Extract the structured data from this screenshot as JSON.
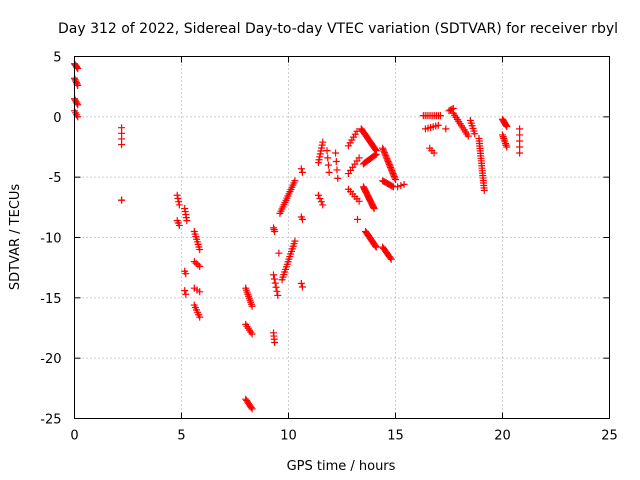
{
  "chart_data": {
    "type": "scatter",
    "title": "Day 312 of 2022, Sidereal Day-to-day VTEC variation (SDTVAR) for receiver rbyl",
    "xlabel": "GPS time / hours",
    "ylabel": "SDTVAR / TECUs",
    "xlim": [
      0,
      25
    ],
    "ylim": [
      -25,
      5
    ],
    "xticks": [
      0,
      5,
      10,
      15,
      20,
      25
    ],
    "yticks": [
      5,
      0,
      -5,
      -10,
      -15,
      -20,
      -25
    ],
    "xtick_labels": [
      "0",
      "5",
      "10",
      "15",
      "20",
      "25"
    ],
    "ytick_labels": [
      "5",
      "0",
      "-5",
      "-10",
      "-15",
      "-20",
      "-25"
    ],
    "grid": true,
    "marker": "+",
    "color": "#ff0000",
    "series": [
      {
        "name": "SDTVAR",
        "segments": [
          {
            "x0": 0.0,
            "x1": 0.15,
            "y0": 4.4,
            "y1": 4.0,
            "n": 6
          },
          {
            "x0": 0.0,
            "x1": 0.15,
            "y0": 3.2,
            "y1": 2.6,
            "n": 6
          },
          {
            "x0": 0.0,
            "x1": 0.15,
            "y0": 1.5,
            "y1": 1.0,
            "n": 5
          },
          {
            "x0": 0.0,
            "x1": 0.15,
            "y0": 0.5,
            "y1": 0.0,
            "n": 4
          },
          {
            "x0": 2.2,
            "x1": 2.2,
            "y0": -0.9,
            "y1": -2.3,
            "n": 4
          },
          {
            "x0": 2.2,
            "x1": 2.2,
            "y0": -6.9,
            "y1": -6.9,
            "n": 2
          },
          {
            "x0": 4.8,
            "x1": 4.9,
            "y0": -6.5,
            "y1": -7.3,
            "n": 4
          },
          {
            "x0": 4.8,
            "x1": 4.9,
            "y0": -8.6,
            "y1": -9.0,
            "n": 3
          },
          {
            "x0": 5.15,
            "x1": 5.25,
            "y0": -7.6,
            "y1": -8.6,
            "n": 5
          },
          {
            "x0": 5.15,
            "x1": 5.2,
            "y0": -12.8,
            "y1": -13.0,
            "n": 2
          },
          {
            "x0": 5.15,
            "x1": 5.2,
            "y0": -14.4,
            "y1": -14.7,
            "n": 2
          },
          {
            "x0": 5.6,
            "x1": 5.85,
            "y0": -9.5,
            "y1": -11.0,
            "n": 8
          },
          {
            "x0": 5.6,
            "x1": 5.85,
            "y0": -12.0,
            "y1": -12.4,
            "n": 4
          },
          {
            "x0": 5.6,
            "x1": 5.85,
            "y0": -14.2,
            "y1": -14.5,
            "n": 3
          },
          {
            "x0": 5.6,
            "x1": 5.85,
            "y0": -15.6,
            "y1": -16.6,
            "n": 6
          },
          {
            "x0": 8.0,
            "x1": 8.3,
            "y0": -14.2,
            "y1": -15.7,
            "n": 10
          },
          {
            "x0": 8.0,
            "x1": 8.3,
            "y0": -17.2,
            "y1": -18.0,
            "n": 6
          },
          {
            "x0": 8.0,
            "x1": 8.3,
            "y0": -23.4,
            "y1": -24.2,
            "n": 8
          },
          {
            "x0": 9.3,
            "x1": 9.35,
            "y0": -9.2,
            "y1": -9.5,
            "n": 3
          },
          {
            "x0": 9.3,
            "x1": 9.5,
            "y0": -13.1,
            "y1": -14.8,
            "n": 6
          },
          {
            "x0": 9.3,
            "x1": 9.35,
            "y0": -17.9,
            "y1": -18.7,
            "n": 4
          },
          {
            "x0": 9.6,
            "x1": 10.3,
            "y0": -8.0,
            "y1": -5.3,
            "n": 16
          },
          {
            "x0": 9.5,
            "x1": 9.6,
            "y0": -11.3,
            "y1": -11.3,
            "n": 1
          },
          {
            "x0": 9.7,
            "x1": 10.3,
            "y0": -13.5,
            "y1": -10.3,
            "n": 16
          },
          {
            "x0": 10.6,
            "x1": 10.65,
            "y0": -4.3,
            "y1": -4.6,
            "n": 2
          },
          {
            "x0": 10.6,
            "x1": 10.65,
            "y0": -8.3,
            "y1": -8.5,
            "n": 2
          },
          {
            "x0": 10.6,
            "x1": 10.65,
            "y0": -13.8,
            "y1": -14.1,
            "n": 2
          },
          {
            "x0": 11.4,
            "x1": 11.6,
            "y0": -3.8,
            "y1": -2.1,
            "n": 8
          },
          {
            "x0": 11.4,
            "x1": 11.6,
            "y0": -6.5,
            "y1": -7.3,
            "n": 4
          },
          {
            "x0": 11.8,
            "x1": 11.9,
            "y0": -2.8,
            "y1": -4.6,
            "n": 4
          },
          {
            "x0": 12.2,
            "x1": 12.3,
            "y0": -3.0,
            "y1": -5.1,
            "n": 4
          },
          {
            "x0": 12.8,
            "x1": 13.2,
            "y0": -2.4,
            "y1": -1.2,
            "n": 6
          },
          {
            "x0": 12.8,
            "x1": 13.3,
            "y0": -4.7,
            "y1": -3.4,
            "n": 6
          },
          {
            "x0": 12.8,
            "x1": 13.3,
            "y0": -6.0,
            "y1": -7.0,
            "n": 6
          },
          {
            "x0": 13.2,
            "x1": 13.25,
            "y0": -8.5,
            "y1": -8.5,
            "n": 1
          },
          {
            "x0": 13.4,
            "x1": 14.1,
            "y0": -1.0,
            "y1": -2.8,
            "n": 20
          },
          {
            "x0": 13.5,
            "x1": 14.1,
            "y0": -3.9,
            "y1": -3.1,
            "n": 12
          },
          {
            "x0": 13.5,
            "x1": 14.0,
            "y0": -5.8,
            "y1": -7.6,
            "n": 20
          },
          {
            "x0": 13.6,
            "x1": 14.1,
            "y0": -9.5,
            "y1": -10.8,
            "n": 16
          },
          {
            "x0": 14.4,
            "x1": 15.0,
            "y0": -2.6,
            "y1": -5.2,
            "n": 22
          },
          {
            "x0": 14.4,
            "x1": 14.9,
            "y0": -5.3,
            "y1": -5.8,
            "n": 10
          },
          {
            "x0": 14.4,
            "x1": 14.8,
            "y0": -10.8,
            "y1": -11.8,
            "n": 10
          },
          {
            "x0": 15.1,
            "x1": 15.4,
            "y0": -5.8,
            "y1": -5.6,
            "n": 3
          },
          {
            "x0": 16.3,
            "x1": 17.1,
            "y0": 0.1,
            "y1": 0.1,
            "n": 10
          },
          {
            "x0": 16.4,
            "x1": 17.0,
            "y0": -1.0,
            "y1": -0.7,
            "n": 6
          },
          {
            "x0": 16.6,
            "x1": 16.8,
            "y0": -2.6,
            "y1": -3.0,
            "n": 3
          },
          {
            "x0": 17.5,
            "x1": 17.7,
            "y0": 0.5,
            "y1": 0.7,
            "n": 4
          },
          {
            "x0": 17.7,
            "x1": 18.4,
            "y0": 0.3,
            "y1": -1.6,
            "n": 12
          },
          {
            "x0": 17.3,
            "x1": 17.4,
            "y0": -1.0,
            "y1": -1.0,
            "n": 1
          },
          {
            "x0": 18.5,
            "x1": 18.7,
            "y0": -0.3,
            "y1": -1.4,
            "n": 6
          },
          {
            "x0": 18.9,
            "x1": 19.15,
            "y0": -1.8,
            "y1": -6.1,
            "n": 22
          },
          {
            "x0": 20.0,
            "x1": 20.2,
            "y0": -0.2,
            "y1": -0.8,
            "n": 8
          },
          {
            "x0": 20.0,
            "x1": 20.2,
            "y0": -1.5,
            "y1": -2.5,
            "n": 8
          },
          {
            "x0": 20.8,
            "x1": 20.8,
            "y0": -1.0,
            "y1": -3.0,
            "n": 5
          }
        ]
      }
    ]
  }
}
